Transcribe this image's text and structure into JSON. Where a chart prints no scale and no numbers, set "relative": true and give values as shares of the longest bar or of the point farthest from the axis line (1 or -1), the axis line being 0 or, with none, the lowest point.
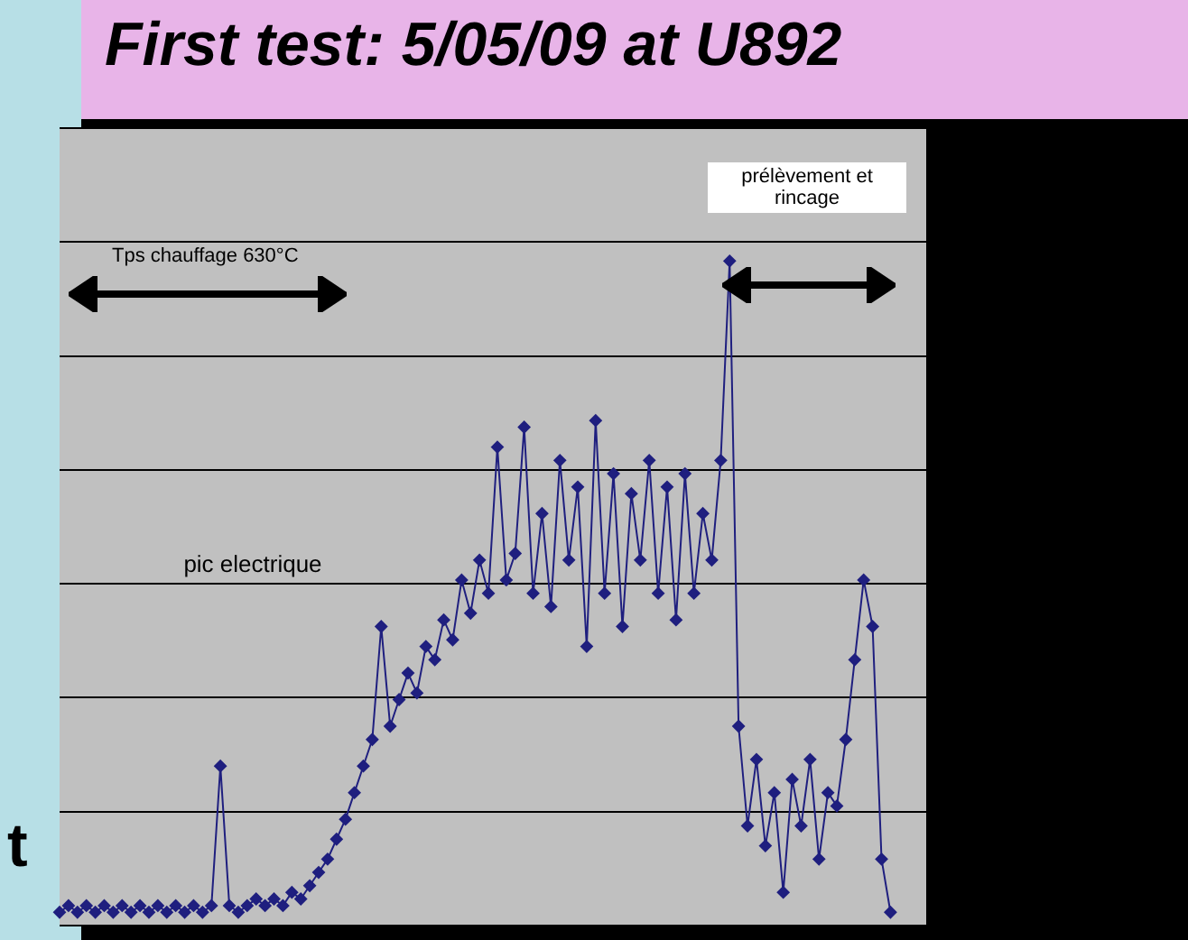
{
  "chart_data": {
    "type": "line",
    "title": "First test: 5/05/09 at U892",
    "relative": true,
    "grid": "y",
    "marker": "diamond",
    "legend": false,
    "annotations": [
      "Tps chauffage 630°C",
      "prélèvement et rincage",
      "pic electrique",
      "t"
    ],
    "categories": [
      null,
      null,
      null,
      null,
      null,
      null,
      null,
      null,
      null,
      null,
      null,
      null,
      null,
      null,
      null,
      null,
      null,
      null,
      null,
      null,
      null,
      null,
      null,
      null,
      null,
      null,
      null,
      null,
      null,
      null,
      null,
      null,
      null,
      null,
      null,
      null,
      null,
      null,
      null,
      null,
      null,
      null,
      null,
      null,
      null,
      null,
      null,
      null,
      null,
      null,
      null,
      null,
      null,
      null,
      null,
      null,
      null,
      null,
      null,
      null,
      null,
      null,
      null,
      null,
      null,
      null,
      null,
      null,
      null,
      null,
      null,
      null,
      null,
      null,
      null,
      null,
      null,
      null,
      null,
      null,
      null,
      null,
      null,
      null,
      null,
      null,
      null,
      null,
      null,
      null,
      null,
      null,
      null,
      null,
      null,
      null,
      null,
      null
    ],
    "series": [
      {
        "color": "#1f1f7f",
        "values": [
          0.02,
          0.03,
          0.02,
          0.03,
          0.02,
          0.03,
          0.02,
          0.03,
          0.02,
          0.03,
          0.02,
          0.03,
          0.02,
          0.03,
          0.02,
          0.03,
          0.02,
          0.03,
          0.24,
          0.03,
          0.02,
          0.03,
          0.04,
          0.03,
          0.04,
          0.03,
          0.05,
          0.04,
          0.06,
          0.08,
          0.1,
          0.13,
          0.16,
          0.2,
          0.24,
          0.28,
          0.45,
          0.3,
          0.34,
          0.38,
          0.35,
          0.42,
          0.4,
          0.46,
          0.43,
          0.52,
          0.47,
          0.55,
          0.5,
          0.72,
          0.52,
          0.56,
          0.75,
          0.5,
          0.62,
          0.48,
          0.7,
          0.55,
          0.66,
          0.42,
          0.76,
          0.5,
          0.68,
          0.45,
          0.65,
          0.55,
          0.7,
          0.5,
          0.66,
          0.46,
          0.68,
          0.5,
          0.62,
          0.55,
          0.7,
          1,
          0.3,
          0.15,
          0.25,
          0.12,
          0.2,
          0.05,
          0.22,
          0.15,
          0.25,
          0.1,
          0.2,
          0.18,
          0.28,
          0.4,
          0.52,
          0.45,
          0.1,
          0.02,
          null,
          null,
          null,
          null
        ]
      }
    ]
  }
}
